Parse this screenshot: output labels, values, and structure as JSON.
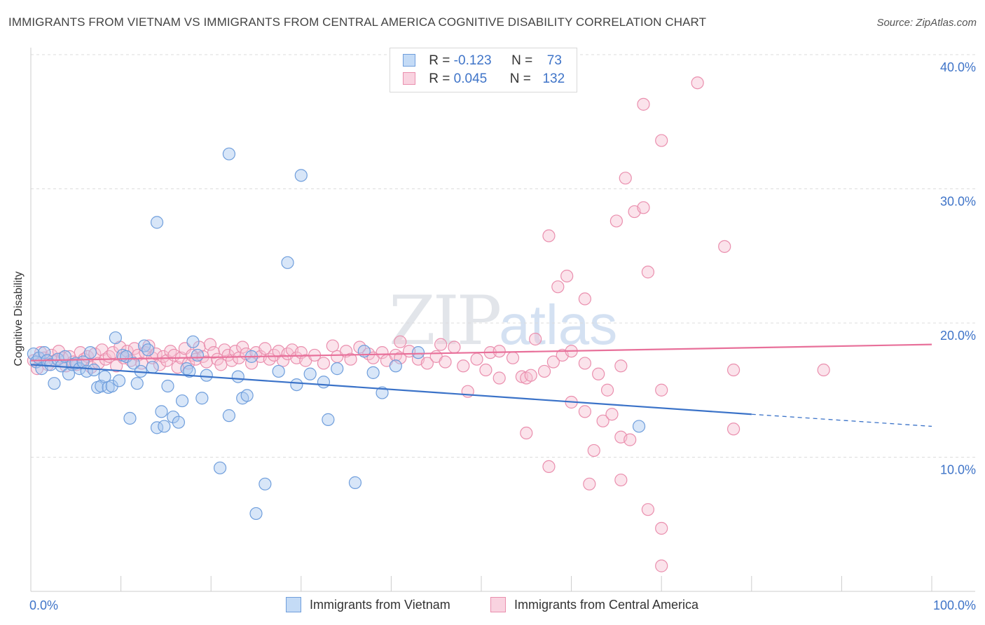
{
  "header": {
    "title": "IMMIGRANTS FROM VIETNAM VS IMMIGRANTS FROM CENTRAL AMERICA COGNITIVE DISABILITY CORRELATION CHART",
    "source": "Source: ZipAtlas.com"
  },
  "watermark": {
    "zip": "ZIP",
    "atlas": "atlas"
  },
  "legend": {
    "rows": [
      {
        "r_label": "R =",
        "r_value": "-0.123",
        "n_label": "N =",
        "n_value": "73"
      },
      {
        "r_label": "R =",
        "r_value": "0.045",
        "n_label": "N =",
        "n_value": "132"
      }
    ]
  },
  "colors": {
    "vietnam_fill": "#a8c8f0",
    "vietnam_stroke": "#6f9edc",
    "vietnam_line": "#3a72c8",
    "ca_fill": "#f6c0d2",
    "ca_stroke": "#ea8fae",
    "ca_line": "#e8709a",
    "tick_label": "#3f74c8",
    "grid": "#dcdcdc"
  },
  "chart_data": {
    "type": "scatter",
    "title": "IMMIGRANTS FROM VIETNAM VS IMMIGRANTS FROM CENTRAL AMERICA COGNITIVE DISABILITY CORRELATION CHART",
    "xlabel": "",
    "ylabel": "Cognitive Disability",
    "xlim": [
      0,
      100
    ],
    "ylim": [
      0,
      40
    ],
    "x_tick_labels": [
      "0.0%",
      "100.0%"
    ],
    "y_ticks": [
      10,
      20,
      30,
      40
    ],
    "y_tick_labels": [
      "10.0%",
      "20.0%",
      "30.0%",
      "40.0%"
    ],
    "grid": "horizontal dashed",
    "legend_position": "top-center",
    "series": [
      {
        "name": "Immigrants from Vietnam",
        "r": -0.123,
        "n": 73,
        "trend": {
          "x0": 0,
          "y0": 16.9,
          "x1": 80,
          "y1": 13.2,
          "dashed_to_x": 100,
          "dashed_to_y": 12.3
        },
        "points": [
          [
            0.3,
            17.7
          ],
          [
            0.6,
            17.1
          ],
          [
            0.9,
            17.4
          ],
          [
            1.2,
            16.6
          ],
          [
            1.5,
            17.8
          ],
          [
            1.8,
            17.2
          ],
          [
            2.2,
            16.9
          ],
          [
            2.6,
            15.5
          ],
          [
            3.0,
            17.3
          ],
          [
            3.4,
            16.8
          ],
          [
            3.8,
            17.5
          ],
          [
            4.2,
            16.2
          ],
          [
            4.6,
            16.9
          ],
          [
            5.0,
            17.0
          ],
          [
            5.4,
            16.6
          ],
          [
            5.8,
            17.1
          ],
          [
            6.2,
            16.4
          ],
          [
            6.6,
            17.8
          ],
          [
            7.0,
            16.5
          ],
          [
            7.4,
            15.2
          ],
          [
            7.8,
            15.3
          ],
          [
            8.2,
            16.0
          ],
          [
            8.6,
            15.2
          ],
          [
            9.0,
            15.3
          ],
          [
            9.4,
            18.9
          ],
          [
            9.8,
            15.7
          ],
          [
            10.2,
            17.6
          ],
          [
            10.6,
            17.5
          ],
          [
            11.0,
            12.9
          ],
          [
            11.4,
            17.0
          ],
          [
            11.8,
            15.5
          ],
          [
            12.2,
            16.4
          ],
          [
            12.6,
            18.3
          ],
          [
            13.0,
            18.0
          ],
          [
            13.5,
            16.7
          ],
          [
            14.0,
            12.2
          ],
          [
            14.5,
            13.4
          ],
          [
            14.8,
            12.3
          ],
          [
            15.2,
            15.3
          ],
          [
            15.8,
            13.0
          ],
          [
            16.4,
            12.6
          ],
          [
            16.8,
            14.2
          ],
          [
            17.3,
            16.6
          ],
          [
            17.6,
            16.4
          ],
          [
            18.0,
            18.6
          ],
          [
            18.5,
            17.6
          ],
          [
            19.0,
            14.4
          ],
          [
            19.5,
            16.1
          ],
          [
            21.0,
            9.2
          ],
          [
            22.0,
            13.1
          ],
          [
            23.0,
            16.0
          ],
          [
            23.5,
            14.4
          ],
          [
            24.0,
            14.6
          ],
          [
            24.5,
            17.5
          ],
          [
            25.0,
            5.8
          ],
          [
            26.0,
            8.0
          ],
          [
            27.5,
            16.4
          ],
          [
            28.5,
            24.5
          ],
          [
            29.5,
            15.4
          ],
          [
            30.0,
            31.0
          ],
          [
            31.0,
            16.2
          ],
          [
            32.5,
            15.6
          ],
          [
            33.0,
            12.8
          ],
          [
            34.0,
            16.6
          ],
          [
            36.0,
            8.1
          ],
          [
            37.0,
            17.9
          ],
          [
            38.0,
            16.3
          ],
          [
            39.0,
            14.8
          ],
          [
            40.5,
            16.8
          ],
          [
            43.0,
            17.8
          ],
          [
            14.0,
            27.5
          ],
          [
            22.0,
            32.6
          ],
          [
            67.5,
            12.3
          ]
        ]
      },
      {
        "name": "Immigrants from Central America",
        "r": 0.045,
        "n": 132,
        "trend": {
          "x0": 0,
          "y0": 17.2,
          "x1": 100,
          "y1": 18.4
        },
        "points": [
          [
            0.3,
            17.2
          ],
          [
            0.7,
            16.6
          ],
          [
            1.1,
            17.8
          ],
          [
            1.5,
            17.4
          ],
          [
            1.9,
            16.9
          ],
          [
            2.3,
            17.6
          ],
          [
            2.7,
            17.2
          ],
          [
            3.1,
            17.9
          ],
          [
            3.5,
            17.4
          ],
          [
            3.9,
            16.8
          ],
          [
            4.3,
            17.5
          ],
          [
            4.7,
            17.1
          ],
          [
            5.1,
            16.9
          ],
          [
            5.5,
            17.8
          ],
          [
            5.9,
            17.3
          ],
          [
            6.3,
            17.5
          ],
          [
            6.7,
            16.7
          ],
          [
            7.1,
            17.7
          ],
          [
            7.5,
            17.0
          ],
          [
            7.9,
            18.0
          ],
          [
            8.3,
            17.3
          ],
          [
            8.7,
            17.5
          ],
          [
            9.1,
            17.8
          ],
          [
            9.5,
            16.8
          ],
          [
            9.9,
            18.2
          ],
          [
            10.3,
            17.4
          ],
          [
            10.7,
            17.9
          ],
          [
            11.1,
            17.2
          ],
          [
            11.5,
            18.1
          ],
          [
            11.9,
            17.6
          ],
          [
            12.3,
            17.0
          ],
          [
            12.7,
            17.8
          ],
          [
            13.1,
            18.3
          ],
          [
            13.5,
            17.4
          ],
          [
            13.9,
            17.7
          ],
          [
            14.3,
            16.9
          ],
          [
            14.7,
            17.5
          ],
          [
            15.1,
            17.2
          ],
          [
            15.5,
            17.9
          ],
          [
            15.9,
            17.6
          ],
          [
            16.3,
            16.7
          ],
          [
            16.7,
            17.4
          ],
          [
            17.1,
            18.1
          ],
          [
            17.5,
            17.0
          ],
          [
            17.9,
            17.6
          ],
          [
            18.3,
            17.3
          ],
          [
            18.7,
            18.2
          ],
          [
            19.1,
            17.5
          ],
          [
            19.5,
            17.1
          ],
          [
            19.9,
            18.4
          ],
          [
            20.3,
            17.8
          ],
          [
            20.7,
            17.3
          ],
          [
            21.1,
            16.9
          ],
          [
            21.5,
            18.0
          ],
          [
            21.9,
            17.6
          ],
          [
            22.3,
            17.2
          ],
          [
            22.7,
            17.9
          ],
          [
            23.1,
            17.4
          ],
          [
            23.5,
            18.2
          ],
          [
            23.9,
            17.7
          ],
          [
            24.5,
            17.0
          ],
          [
            25.0,
            17.8
          ],
          [
            25.5,
            17.5
          ],
          [
            26.0,
            18.1
          ],
          [
            26.5,
            17.3
          ],
          [
            27.0,
            17.6
          ],
          [
            27.5,
            17.9
          ],
          [
            28.0,
            17.2
          ],
          [
            28.5,
            17.7
          ],
          [
            29.0,
            18.0
          ],
          [
            29.5,
            17.4
          ],
          [
            30.0,
            17.8
          ],
          [
            30.5,
            17.2
          ],
          [
            31.5,
            17.6
          ],
          [
            32.5,
            17.0
          ],
          [
            33.5,
            18.3
          ],
          [
            34.0,
            17.5
          ],
          [
            35.0,
            17.9
          ],
          [
            35.5,
            17.3
          ],
          [
            36.5,
            18.2
          ],
          [
            37.5,
            17.7
          ],
          [
            38.0,
            17.4
          ],
          [
            39.0,
            17.8
          ],
          [
            39.5,
            17.2
          ],
          [
            40.5,
            17.6
          ],
          [
            41.0,
            17.4
          ],
          [
            42.0,
            17.9
          ],
          [
            43.0,
            17.3
          ],
          [
            44.0,
            17.0
          ],
          [
            45.0,
            17.5
          ],
          [
            46.0,
            17.1
          ],
          [
            47.0,
            18.2
          ],
          [
            48.0,
            16.8
          ],
          [
            48.5,
            14.9
          ],
          [
            49.5,
            17.3
          ],
          [
            50.5,
            16.5
          ],
          [
            51.0,
            17.8
          ],
          [
            52.0,
            15.9
          ],
          [
            53.5,
            17.4
          ],
          [
            54.5,
            16.0
          ],
          [
            55.0,
            15.9
          ],
          [
            55.5,
            16.1
          ],
          [
            57.0,
            16.4
          ],
          [
            58.0,
            17.1
          ],
          [
            59.0,
            17.6
          ],
          [
            60.0,
            17.9
          ],
          [
            61.5,
            17.0
          ],
          [
            63.0,
            16.2
          ],
          [
            64.0,
            15.0
          ],
          [
            65.5,
            16.8
          ],
          [
            41.0,
            18.6
          ],
          [
            45.5,
            18.4
          ],
          [
            52.0,
            17.9
          ],
          [
            56.0,
            18.8
          ],
          [
            57.5,
            26.5
          ],
          [
            58.5,
            22.7
          ],
          [
            59.5,
            23.5
          ],
          [
            61.5,
            21.8
          ],
          [
            65.0,
            27.6
          ],
          [
            66.0,
            30.8
          ],
          [
            67.0,
            28.3
          ],
          [
            68.0,
            28.6
          ],
          [
            68.5,
            23.8
          ],
          [
            68.0,
            36.3
          ],
          [
            70.0,
            33.6
          ],
          [
            74.0,
            37.9
          ],
          [
            77.0,
            25.7
          ],
          [
            70.0,
            15.0
          ],
          [
            78.0,
            16.5
          ],
          [
            78.0,
            12.1
          ],
          [
            88.0,
            16.5
          ],
          [
            55.0,
            11.8
          ],
          [
            57.5,
            9.3
          ],
          [
            60.0,
            14.1
          ],
          [
            61.5,
            13.4
          ],
          [
            62.5,
            10.5
          ],
          [
            62.0,
            8.0
          ],
          [
            63.5,
            12.7
          ],
          [
            64.5,
            13.2
          ],
          [
            65.5,
            8.3
          ],
          [
            65.5,
            11.5
          ],
          [
            66.5,
            11.3
          ],
          [
            68.5,
            6.1
          ],
          [
            70.0,
            4.7
          ],
          [
            70.0,
            1.9
          ]
        ]
      }
    ]
  },
  "axis": {
    "y_label": "Cognitive Disability"
  },
  "bottom_legend": {
    "vietnam": "Immigrants from Vietnam",
    "central_america": "Immigrants from Central America"
  }
}
